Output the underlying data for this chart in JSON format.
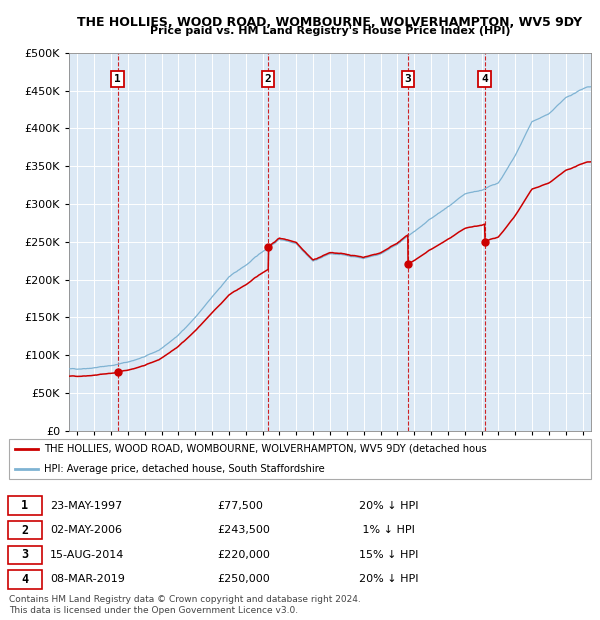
{
  "title": "THE HOLLIES, WOOD ROAD, WOMBOURNE, WOLVERHAMPTON, WV5 9DY",
  "subtitle": "Price paid vs. HM Land Registry's House Price Index (HPI)",
  "background_color": "#dce9f5",
  "ylim": [
    0,
    500000
  ],
  "yticks": [
    0,
    50000,
    100000,
    150000,
    200000,
    250000,
    300000,
    350000,
    400000,
    450000,
    500000
  ],
  "xlim_start": 1994.5,
  "xlim_end": 2025.5,
  "hpi_anchors": [
    [
      1995.0,
      82000
    ],
    [
      1996.0,
      85000
    ],
    [
      1997.0,
      88000
    ],
    [
      1998.0,
      93000
    ],
    [
      1999.0,
      100000
    ],
    [
      2000.0,
      110000
    ],
    [
      2001.0,
      128000
    ],
    [
      2002.0,
      152000
    ],
    [
      2003.0,
      178000
    ],
    [
      2004.0,
      205000
    ],
    [
      2005.0,
      220000
    ],
    [
      2006.0,
      238000
    ],
    [
      2007.0,
      255000
    ],
    [
      2008.0,
      250000
    ],
    [
      2009.0,
      228000
    ],
    [
      2010.0,
      238000
    ],
    [
      2011.0,
      235000
    ],
    [
      2012.0,
      232000
    ],
    [
      2013.0,
      238000
    ],
    [
      2014.0,
      252000
    ],
    [
      2015.0,
      268000
    ],
    [
      2016.0,
      285000
    ],
    [
      2017.0,
      300000
    ],
    [
      2018.0,
      315000
    ],
    [
      2019.0,
      320000
    ],
    [
      2020.0,
      330000
    ],
    [
      2021.0,
      365000
    ],
    [
      2022.0,
      410000
    ],
    [
      2023.0,
      420000
    ],
    [
      2024.0,
      440000
    ],
    [
      2025.3,
      455000
    ]
  ],
  "sale_dates": [
    1997.388,
    2006.329,
    2014.621,
    2019.179
  ],
  "sale_prices": [
    77500,
    243500,
    220000,
    250000
  ],
  "sale_labels": [
    "1",
    "2",
    "3",
    "4"
  ],
  "sale_color": "#cc0000",
  "hpi_color": "#7fb3d3",
  "legend_entries": [
    "THE HOLLIES, WOOD ROAD, WOMBOURNE, WOLVERHAMPTON, WV5 9DY (detached hous",
    "HPI: Average price, detached house, South Staffordshire"
  ],
  "table_rows": [
    {
      "label": "1",
      "date": "23-MAY-1997",
      "price": "£77,500",
      "hpi": "20% ↓ HPI"
    },
    {
      "label": "2",
      "date": "02-MAY-2006",
      "price": "£243,500",
      "hpi": " 1% ↓ HPI"
    },
    {
      "label": "3",
      "date": "15-AUG-2014",
      "price": "£220,000",
      "hpi": "15% ↓ HPI"
    },
    {
      "label": "4",
      "date": "08-MAR-2019",
      "price": "£250,000",
      "hpi": "20% ↓ HPI"
    }
  ],
  "footer": "Contains HM Land Registry data © Crown copyright and database right 2024.\nThis data is licensed under the Open Government Licence v3.0."
}
